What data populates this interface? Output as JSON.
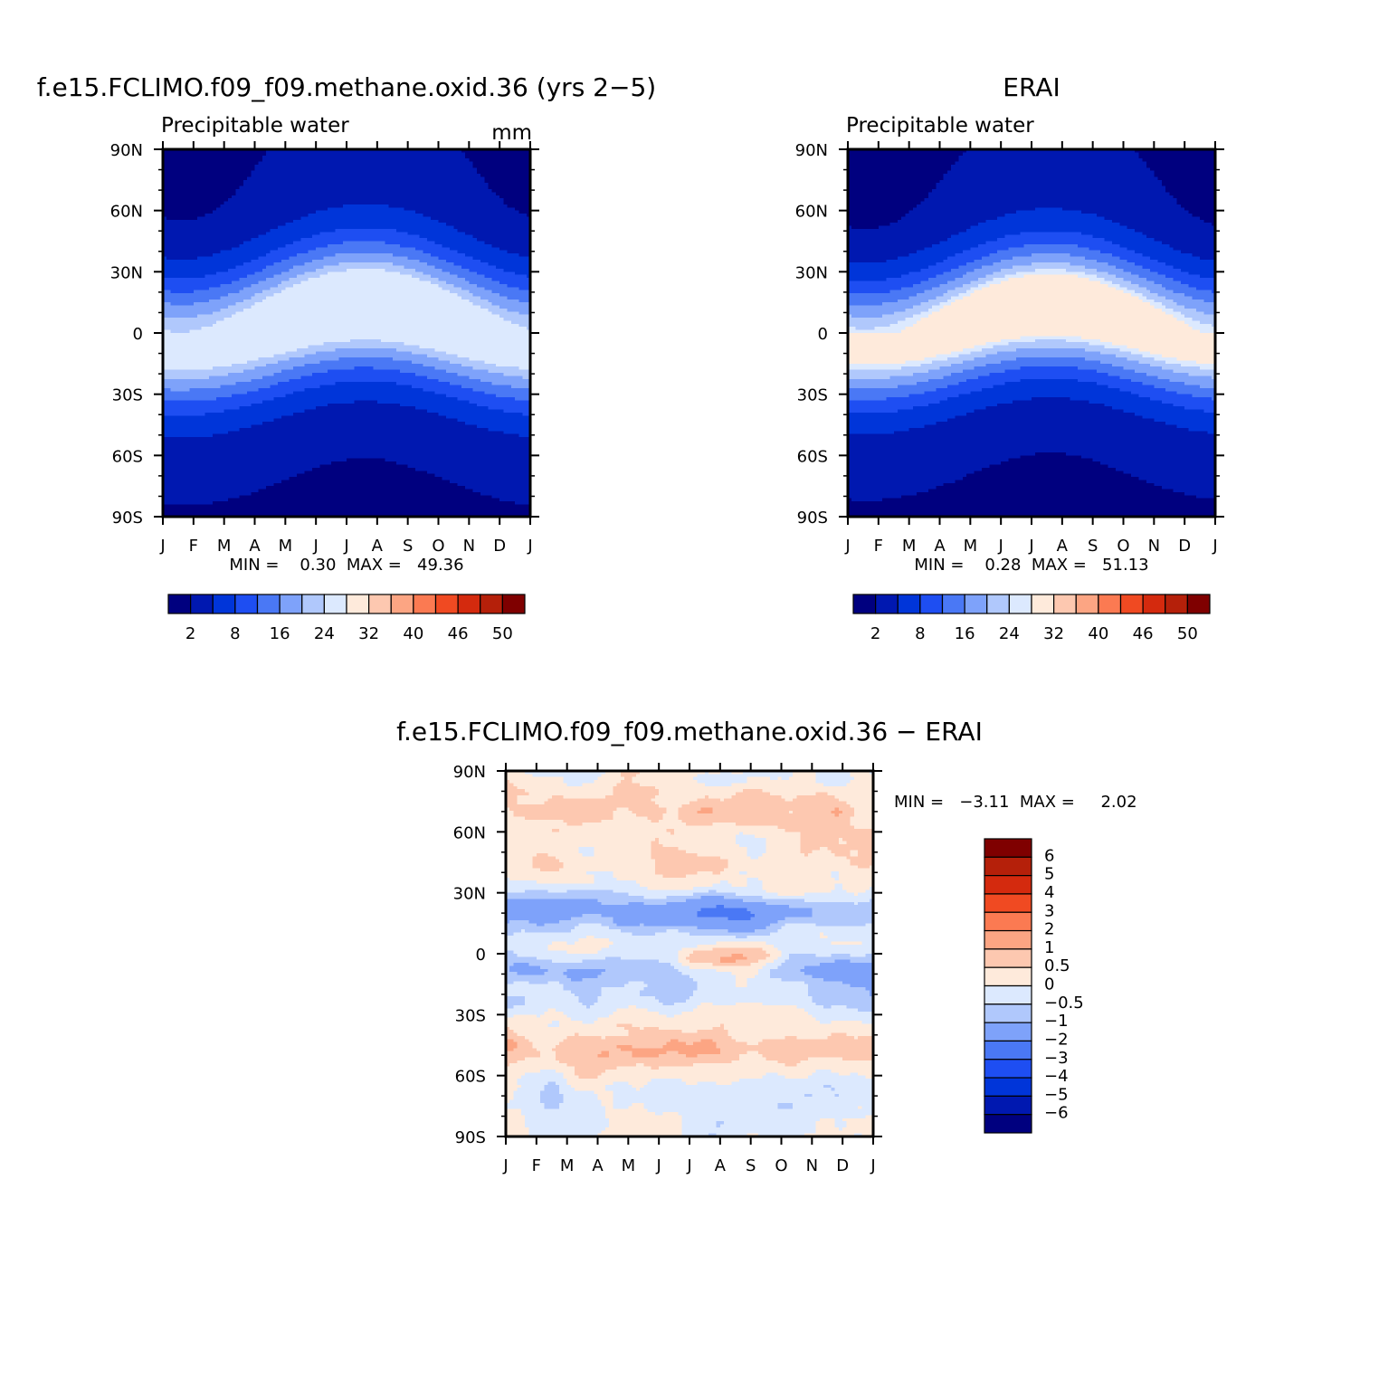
{
  "palettes": {
    "abs": [
      "#00007f",
      "#0018b0",
      "#0035d9",
      "#1e4ef2",
      "#4a78f5",
      "#7ea2fa",
      "#b0c8fc",
      "#dce9fe",
      "#feeadb",
      "#fdc8b0",
      "#fca583",
      "#fb7a52",
      "#f04a22",
      "#d42a0e",
      "#b5200a",
      "#7f0000"
    ],
    "diff": [
      "#00007f",
      "#0018b0",
      "#0035d9",
      "#1e4ef2",
      "#4a78f5",
      "#7ea2fa",
      "#b0c8fc",
      "#dce9fe",
      "#feeadb",
      "#fdc8b0",
      "#fca583",
      "#fb7a52",
      "#f04a22",
      "#d42a0e",
      "#b5200a",
      "#7f0000"
    ]
  },
  "chart_data": [
    {
      "id": "model",
      "type": "heatmap",
      "title": "f.e15.FCLIMO.f09_f09.methane.oxid.36 (yrs 2−5)",
      "subtitle": "Precipitable water",
      "units": "mm",
      "xlabel": "",
      "ylabel": "",
      "x_ticks": [
        "J",
        "F",
        "M",
        "A",
        "M",
        "J",
        "J",
        "A",
        "S",
        "O",
        "N",
        "D",
        "J"
      ],
      "y_ticks": [
        "90N",
        "60N",
        "30N",
        "0",
        "30S",
        "60S",
        "90S"
      ],
      "ylim": [
        -90,
        90
      ],
      "stats_text": "MIN =    0.30  MAX =   49.36",
      "min": 0.3,
      "max": 49.36,
      "levels": [
        2,
        8,
        16,
        24,
        32,
        40,
        46,
        50
      ],
      "field": {
        "peak": 49.4,
        "itcz_lat_jan": -5,
        "itcz_amp": 9,
        "width": 21,
        "polar_n": 1.0,
        "polar_s": 0.4
      },
      "colorbar_labels": [
        "2",
        "8",
        "16",
        "24",
        "32",
        "40",
        "46",
        "50"
      ]
    },
    {
      "id": "obs",
      "type": "heatmap",
      "title": "ERAI",
      "subtitle": "Precipitable water",
      "xlabel": "",
      "ylabel": "",
      "x_ticks": [
        "J",
        "F",
        "M",
        "A",
        "M",
        "J",
        "J",
        "A",
        "S",
        "O",
        "N",
        "D",
        "J"
      ],
      "y_ticks": [
        "90N",
        "60N",
        "30N",
        "0",
        "30S",
        "60S",
        "90S"
      ],
      "ylim": [
        -90,
        90
      ],
      "stats_text": "MIN =    0.28  MAX =   51.13",
      "min": 0.28,
      "max": 51.13,
      "levels": [
        2,
        8,
        16,
        24,
        32,
        40,
        46,
        50
      ],
      "field": {
        "peak": 51.1,
        "itcz_lat_jan": -5,
        "itcz_amp": 9,
        "width": 20,
        "polar_n": 0.8,
        "polar_s": 0.3
      },
      "colorbar_labels": [
        "2",
        "8",
        "16",
        "24",
        "32",
        "40",
        "46",
        "50"
      ]
    },
    {
      "id": "diff",
      "type": "heatmap",
      "title": "f.e15.FCLIMO.f09_f09.methane.oxid.36 − ERAI",
      "xlabel": "",
      "ylabel": "",
      "x_ticks": [
        "J",
        "F",
        "M",
        "A",
        "M",
        "J",
        "J",
        "A",
        "S",
        "O",
        "N",
        "D",
        "J"
      ],
      "y_ticks": [
        "90N",
        "60N",
        "30N",
        "0",
        "30S",
        "60S",
        "90S"
      ],
      "ylim": [
        -90,
        90
      ],
      "stats_text": "MIN =   −3.11  MAX =     2.02",
      "min": -3.11,
      "max": 2.02,
      "levels": [
        -6,
        -5,
        -4,
        -3,
        -2,
        -1,
        -0.5,
        0,
        0.5,
        1,
        2,
        3,
        4,
        5,
        6
      ],
      "colorbar_labels": [
        "6",
        "5",
        "4",
        "3",
        "2",
        "1",
        "0.5",
        "0",
        "−0.5",
        "−1",
        "−2",
        "−3",
        "−4",
        "−5",
        "−6"
      ]
    }
  ]
}
